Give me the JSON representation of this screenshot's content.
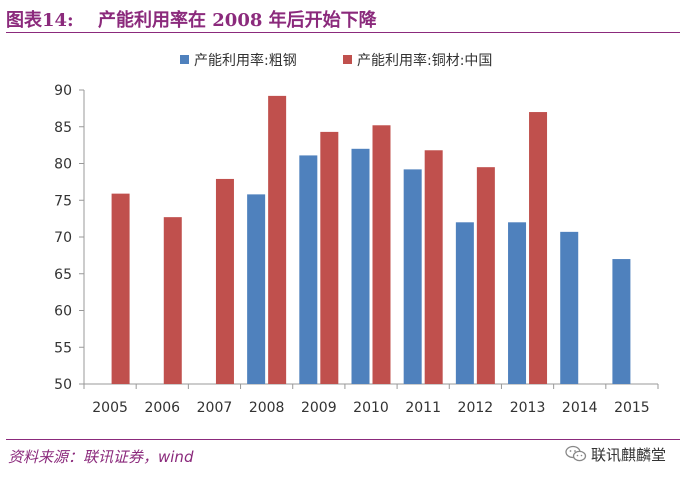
{
  "figure": {
    "number": "图表14:",
    "title": "产能利用率在 2008 年后开始下降"
  },
  "source": "资料来源：联讯证券，wind",
  "brand": "联讯麒麟堂",
  "brand_icon": "wechat-icon",
  "colors": {
    "accent": "#8b2a7c",
    "series_blue": "#4f81bd",
    "series_red": "#c0504d"
  },
  "chart_data": {
    "type": "bar",
    "categories": [
      "2005",
      "2006",
      "2007",
      "2008",
      "2009",
      "2010",
      "2011",
      "2012",
      "2013",
      "2014",
      "2015"
    ],
    "series": [
      {
        "name": "产能利用率:粗钢",
        "color": "#4f81bd",
        "values": [
          null,
          null,
          null,
          75.8,
          81.1,
          82.0,
          79.2,
          72.0,
          72.0,
          70.7,
          67.0
        ]
      },
      {
        "name": "产能利用率:铜材:中国",
        "color": "#c0504d",
        "values": [
          75.9,
          72.7,
          77.9,
          89.2,
          84.3,
          85.2,
          81.8,
          79.5,
          87.0,
          null,
          null
        ]
      }
    ],
    "ylim": [
      50,
      90
    ],
    "yticks": [
      50,
      55,
      60,
      65,
      70,
      75,
      80,
      85,
      90
    ],
    "grid": false,
    "legend_position": "top"
  }
}
